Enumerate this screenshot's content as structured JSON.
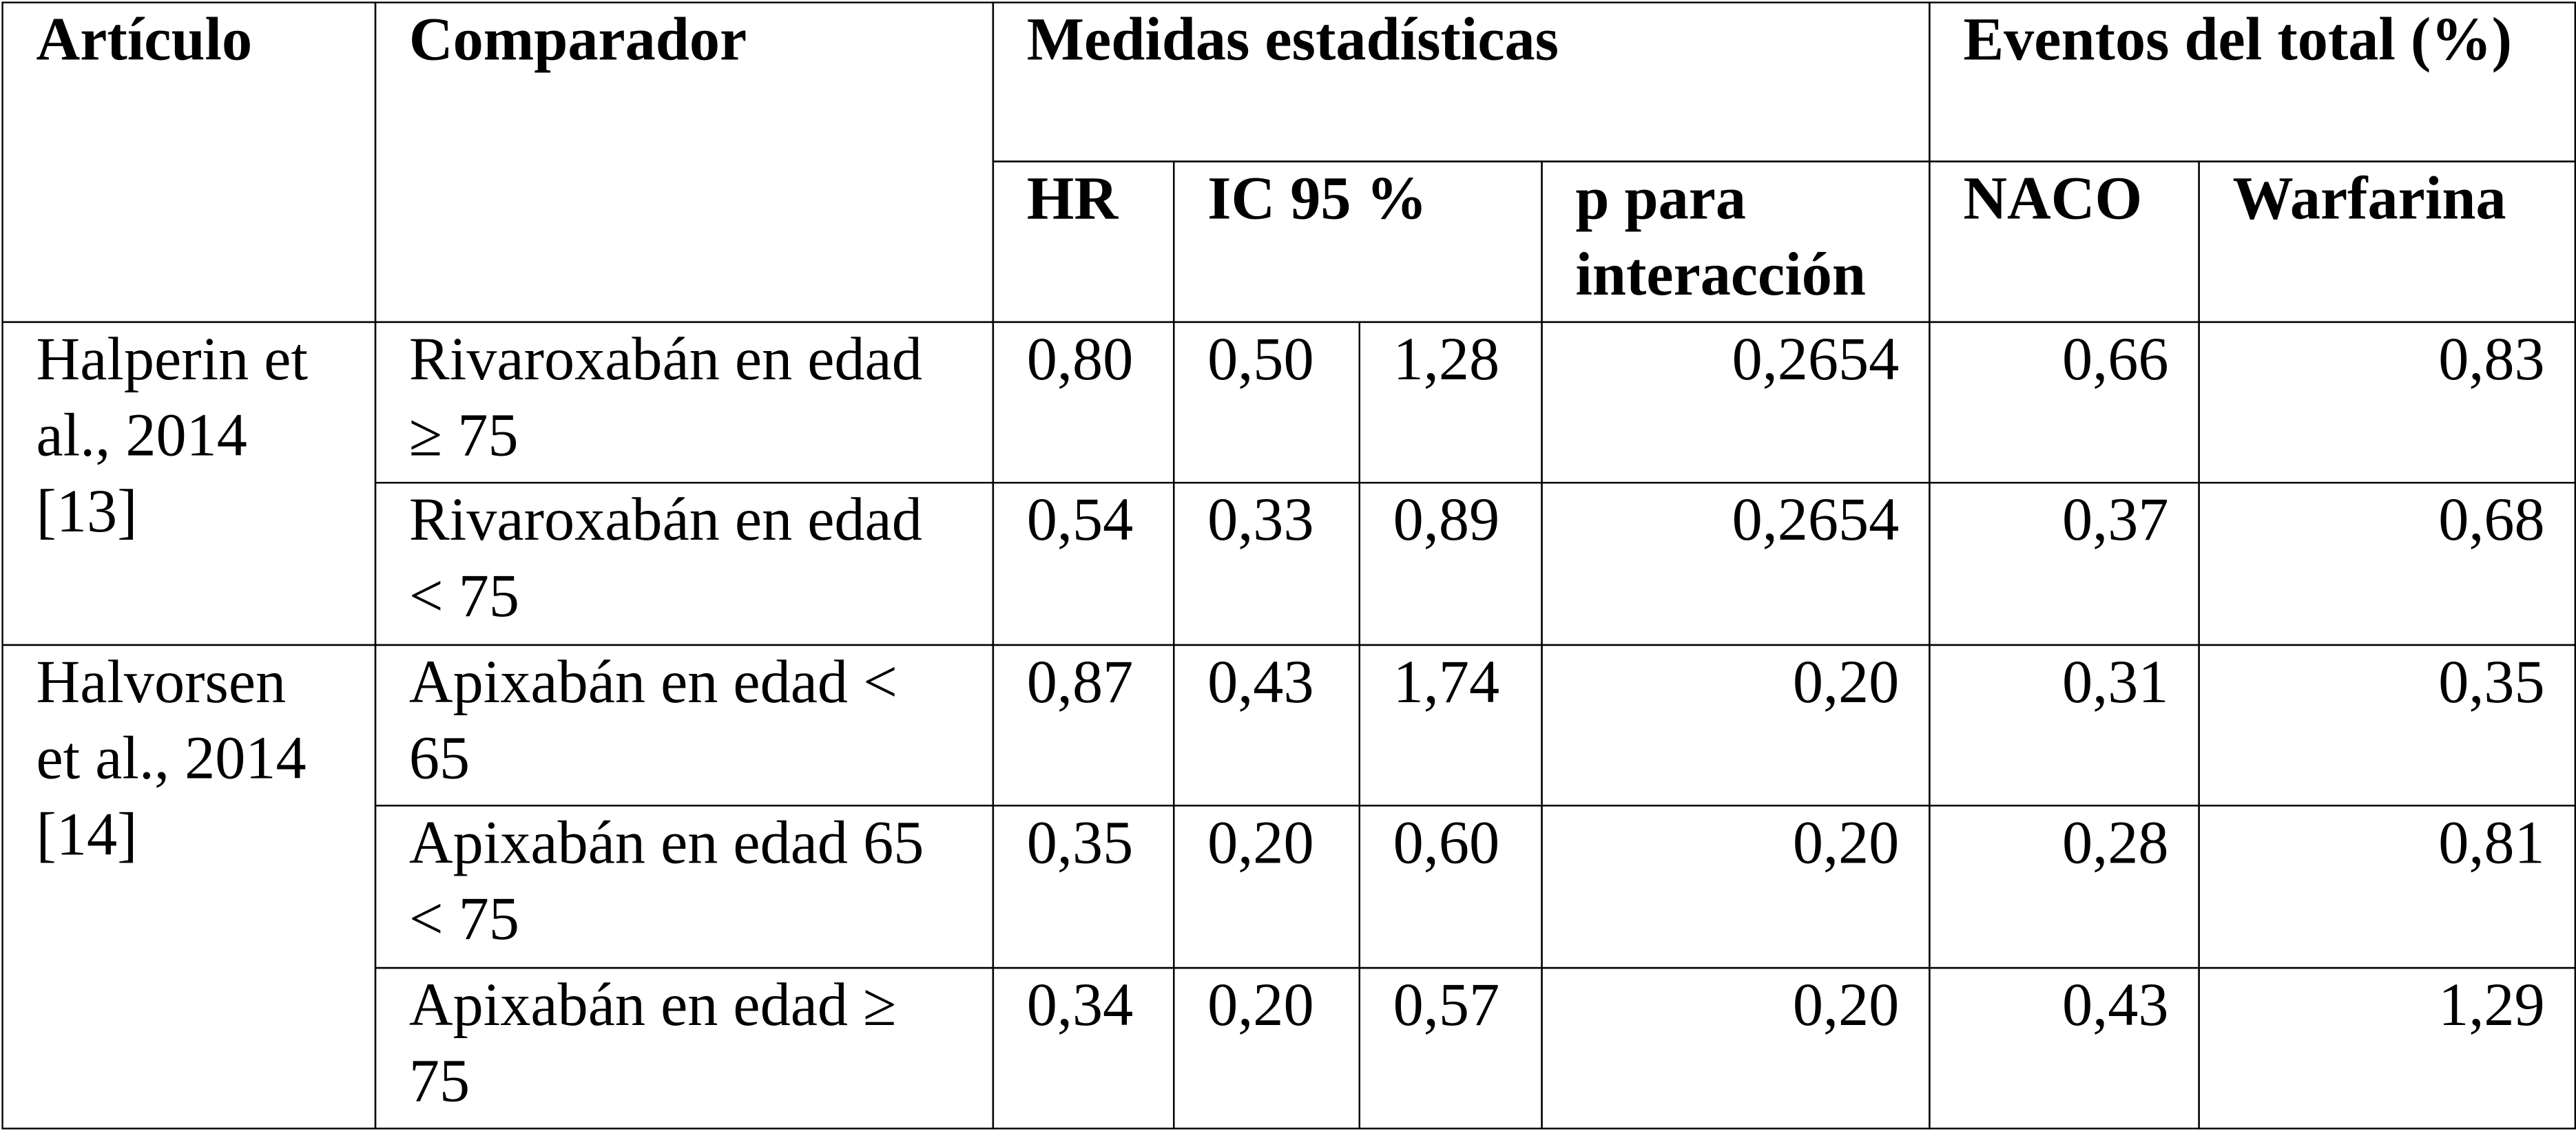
{
  "table": {
    "header": {
      "articulo": "Artículo",
      "comparador": "Comparador",
      "medidas": "Medidas estadísticas",
      "eventos": "Eventos del total (%)",
      "hr": "HR",
      "ic": "IC 95 %",
      "p": "p para interacción",
      "naco": "NACO",
      "warfarina": "Warfarina"
    },
    "groups": [
      {
        "articulo": "Halperin et al., 2014 [13]",
        "rows": [
          [
            "Rivaroxabán en edad ≥ 75",
            "0,80",
            "0,50",
            "1,28",
            "0,2654",
            "0,66",
            "0,83"
          ],
          [
            "Rivaroxabán en edad < 75",
            "0,54",
            "0,33",
            "0,89",
            "0,2654",
            "0,37",
            "0,68"
          ]
        ]
      },
      {
        "articulo": "Halvorsen et al., 2014 [14]",
        "rows": [
          [
            "Apixabán en edad < 65",
            "0,87",
            "0,43",
            "1,74",
            "0,20",
            "0,31",
            "0,35"
          ],
          [
            "Apixabán en edad 65 < 75",
            "0,35",
            "0,20",
            "0,60",
            "0,20",
            "0,28",
            "0,81"
          ],
          [
            "Apixabán en edad ≥ 75",
            "0,34",
            "0,20",
            "0,57",
            "0,20",
            "0,43",
            "1,29"
          ]
        ]
      }
    ]
  }
}
